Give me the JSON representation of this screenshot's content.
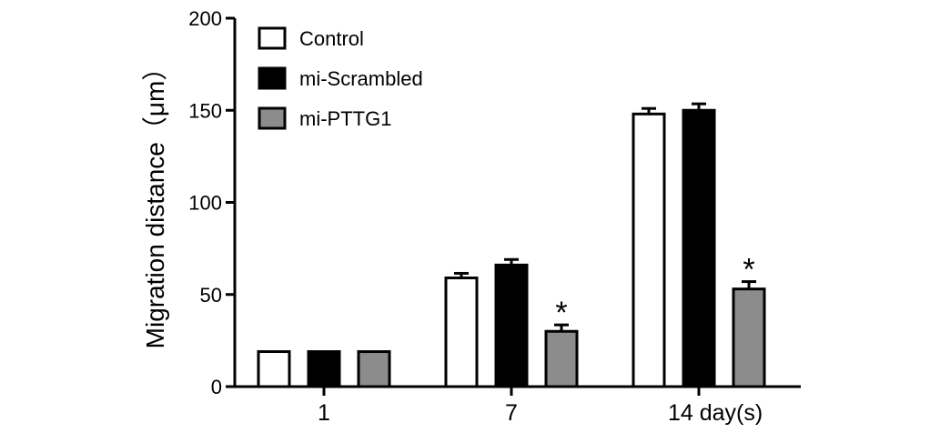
{
  "chart_data": {
    "type": "bar",
    "title": "",
    "ylabel": "Migration distance（μm）",
    "xlabel": "",
    "categories": [
      "1",
      "7",
      "14 day(s)"
    ],
    "ylim": [
      0,
      200
    ],
    "yticks": [
      "0",
      "50",
      "100",
      "150",
      "200"
    ],
    "legend_position": "top-left",
    "series": [
      {
        "name": "Control",
        "values": [
          19,
          59,
          148
        ],
        "errors": [
          0,
          2.5,
          3
        ],
        "color": "#ffffff"
      },
      {
        "name": "mi-Scrambled",
        "values": [
          19,
          66,
          150
        ],
        "errors": [
          0,
          3,
          3.5
        ],
        "color": "#000000"
      },
      {
        "name": "mi-PTTG1",
        "values": [
          19,
          30,
          53
        ],
        "errors": [
          0,
          3.5,
          4
        ],
        "color": "#8c8c8c"
      }
    ],
    "annotations": [
      {
        "text": "*",
        "category": "7",
        "series": "mi-PTTG1"
      },
      {
        "text": "*",
        "category": "14 day(s)",
        "series": "mi-PTTG1"
      }
    ],
    "grid": false
  }
}
